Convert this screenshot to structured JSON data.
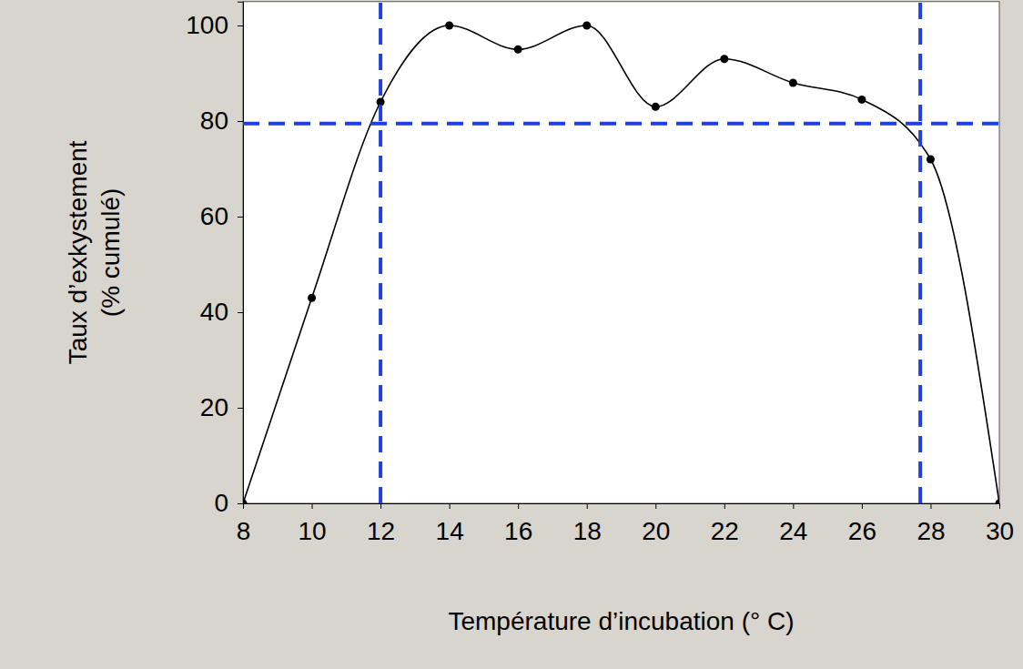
{
  "chart_data": {
    "type": "line",
    "x_label": "Température d’incubation (° C)",
    "y_label": [
      "Taux d’exkystement",
      "(% cumulé)"
    ],
    "x": [
      8,
      10,
      12,
      14,
      16,
      18,
      20,
      22,
      24,
      26,
      28,
      30
    ],
    "values": [
      0,
      43,
      84,
      100,
      95,
      100,
      83,
      93,
      88,
      84.5,
      72,
      0
    ],
    "color": "#000000",
    "marker": "circle",
    "line_style": "solid",
    "xlim": [
      8,
      30
    ],
    "xticks": [
      8,
      10,
      12,
      14,
      16,
      18,
      20,
      22,
      24,
      26,
      28,
      30
    ],
    "ylim": [
      0,
      105
    ],
    "yticks": [
      0,
      20,
      40,
      60,
      80,
      100
    ],
    "grid": false,
    "vlines": [
      12,
      27.7
    ],
    "hlines": [
      79.5
    ]
  }
}
